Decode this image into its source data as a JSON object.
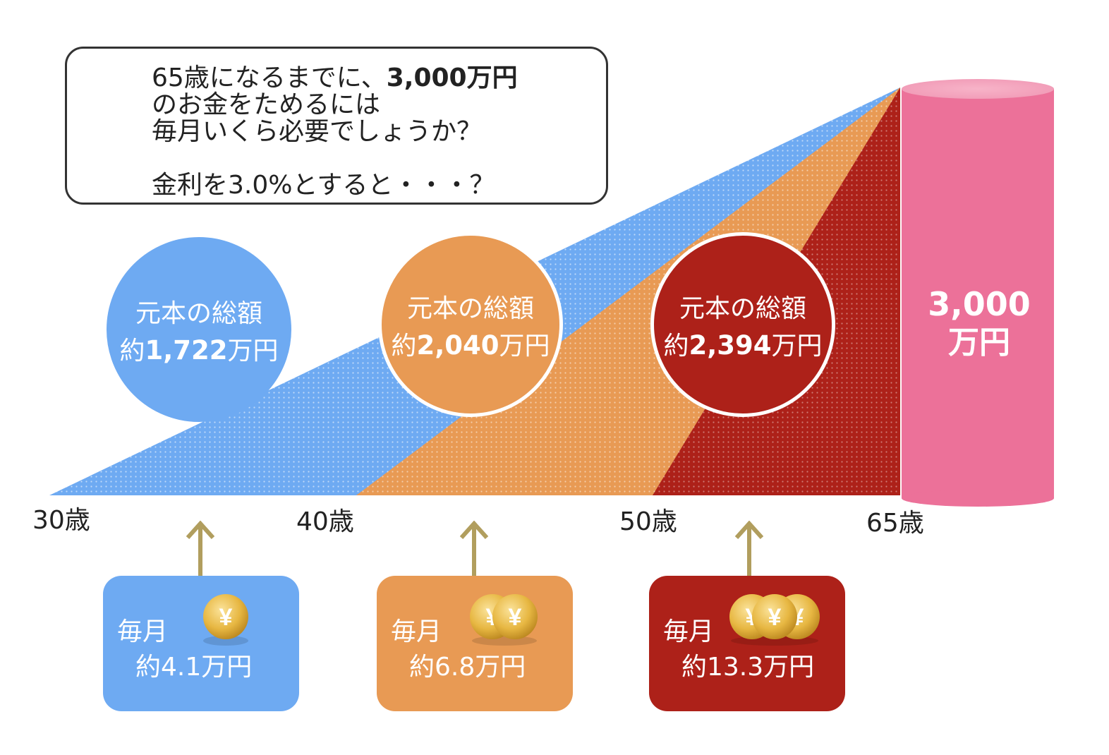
{
  "question": {
    "line1_prefix": "65歳になるまでに、",
    "line1_bold": "3,000万円",
    "line2": "のお金をためるには",
    "line3": "毎月いくら必要でしょうか？",
    "line4": "金利を3.0%とすると・・・？"
  },
  "colors": {
    "blue": "#6eaaf2",
    "orange": "#e89a54",
    "red": "#ad2119",
    "pink": "#ec7199",
    "arrow": "#b19e5e",
    "coin": "#e7b742"
  },
  "ages": [
    "30歳",
    "40歳",
    "50歳",
    "65歳"
  ],
  "plans": [
    {
      "circle_label": "元本の総額",
      "total_prefix": "約",
      "total_value": "1,722",
      "total_unit": "万円",
      "monthly_label": "毎月",
      "monthly_amount": "約4.1万円",
      "coins": 1,
      "coin_symbol": "¥"
    },
    {
      "circle_label": "元本の総額",
      "total_prefix": "約",
      "total_value": "2,040",
      "total_unit": "万円",
      "monthly_label": "毎月",
      "monthly_amount": "約6.8万円",
      "coins": 2,
      "coin_symbol": "¥"
    },
    {
      "circle_label": "元本の総額",
      "total_prefix": "約",
      "total_value": "2,394",
      "total_unit": "万円",
      "monthly_label": "毎月",
      "monthly_amount": "約13.3万円",
      "coins": 3,
      "coin_symbol": "¥"
    }
  ],
  "goal": {
    "amount": "3,000",
    "unit": "万円"
  }
}
